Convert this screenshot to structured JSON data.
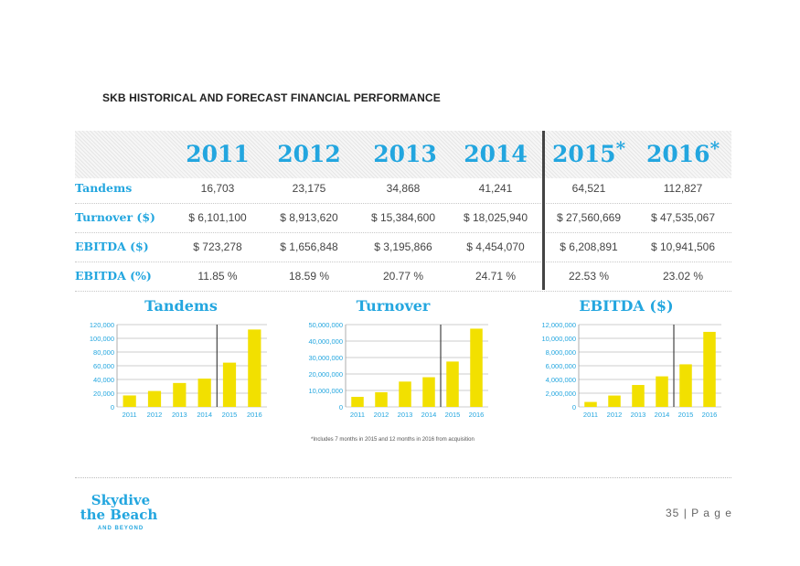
{
  "page": {
    "heading": "SKB HISTORICAL AND FORECAST FINANCIAL PERFORMANCE",
    "footnote": "*Includes 7 months in 2015 and 12 months in 2016 from acquisition",
    "page_number": "35",
    "page_label": "| P a g e",
    "logo": {
      "line1": "Skydive",
      "line2": "the Beach",
      "line3": "AND BEYOND"
    }
  },
  "table": {
    "years": [
      {
        "year": "2011",
        "mark": ""
      },
      {
        "year": "2012",
        "mark": ""
      },
      {
        "year": "2013",
        "mark": ""
      },
      {
        "year": "2014",
        "mark": ""
      },
      {
        "year": "2015",
        "mark": "*"
      },
      {
        "year": "2016",
        "mark": "*"
      }
    ],
    "rows": [
      {
        "label": "Tandems",
        "values": [
          "16,703",
          "23,175",
          "34,868",
          "41,241",
          "64,521",
          "112,827"
        ]
      },
      {
        "label": "Turnover ($)",
        "values": [
          "$ 6,101,100",
          "$ 8,913,620",
          "$ 15,384,600",
          "$ 18,025,940",
          "$ 27,560,669",
          "$ 47,535,067"
        ]
      },
      {
        "label": "EBITDA ($)",
        "values": [
          "$ 723,278",
          "$ 1,656,848",
          "$ 3,195,866",
          "$ 4,454,070",
          "$ 6,208,891",
          "$ 10,941,506"
        ]
      },
      {
        "label": "EBITDA (%)",
        "values": [
          "11.85 %",
          "18.59 %",
          "20.77 %",
          "24.71 %",
          "22.53 %",
          "23.02 %"
        ]
      }
    ]
  },
  "colors": {
    "accent": "#23a6df",
    "bar": "#f2e000",
    "divider": "#444444"
  },
  "chart_data": [
    {
      "type": "bar",
      "title": "Tandems",
      "categories": [
        "2011",
        "2012",
        "2013",
        "2014",
        "2015",
        "2016"
      ],
      "values": [
        16703,
        23175,
        34868,
        41241,
        64521,
        112827
      ],
      "ylim": [
        0,
        120000
      ],
      "yticks": [
        0,
        20000,
        40000,
        60000,
        80000,
        100000,
        120000
      ],
      "ytick_labels": [
        "0",
        "20,000",
        "40,000",
        "60,000",
        "80,000",
        "100,000",
        "120,000"
      ],
      "grid": true,
      "forecast_divider_after": "2014"
    },
    {
      "type": "bar",
      "title": "Turnover",
      "categories": [
        "2011",
        "2012",
        "2013",
        "2014",
        "2015",
        "2016"
      ],
      "values": [
        6101100,
        8913620,
        15384600,
        18025940,
        27560669,
        47535067
      ],
      "ylim": [
        0,
        50000000
      ],
      "yticks": [
        0,
        10000000,
        20000000,
        30000000,
        40000000,
        50000000
      ],
      "ytick_labels": [
        "0",
        "10,000,000",
        "20,000,000",
        "30,000,000",
        "40,000,000",
        "50,000,000"
      ],
      "grid": true,
      "forecast_divider_after": "2014"
    },
    {
      "type": "bar",
      "title": "EBITDA ($)",
      "categories": [
        "2011",
        "2012",
        "2013",
        "2014",
        "2015",
        "2016"
      ],
      "values": [
        723278,
        1656848,
        3195866,
        4454070,
        6208891,
        10941506
      ],
      "ylim": [
        0,
        12000000
      ],
      "yticks": [
        0,
        2000000,
        4000000,
        6000000,
        8000000,
        10000000,
        12000000
      ],
      "ytick_labels": [
        "0",
        "2,000,000",
        "4,000,000",
        "6,000,000",
        "8,000,000",
        "10,000,000",
        "12,000,000"
      ],
      "grid": true,
      "forecast_divider_after": "2014"
    }
  ]
}
